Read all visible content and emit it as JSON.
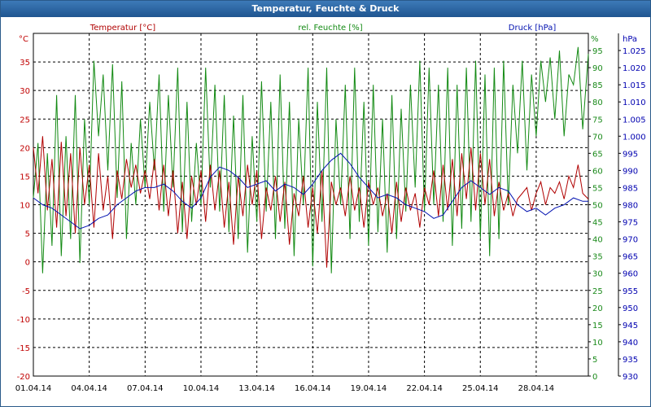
{
  "window": {
    "title": "Temperatur, Feuchte & Druck"
  },
  "chart_data": {
    "type": "line",
    "title": "Temperatur, Feuchte & Druck",
    "grid": true,
    "x_ticks": [
      "01.04.14",
      "04.04.14",
      "07.04.14",
      "10.04.14",
      "13.04.14",
      "16.04.14",
      "19.04.14",
      "22.04.14",
      "25.04.14",
      "28.04.14"
    ],
    "x_range": [
      0,
      29.8
    ],
    "axes": {
      "temperature": {
        "unit": "°C",
        "ylim": [
          -20,
          40
        ],
        "ticks": [
          -20,
          -15,
          -10,
          -5,
          0,
          5,
          10,
          15,
          20,
          25,
          30,
          35
        ],
        "color": "#c00000"
      },
      "humidity": {
        "unit": "%",
        "ylim": [
          0,
          100
        ],
        "ticks": [
          0,
          5,
          10,
          15,
          20,
          25,
          30,
          35,
          40,
          45,
          50,
          55,
          60,
          65,
          70,
          75,
          80,
          85,
          90,
          95
        ],
        "color": "#1a8a1a"
      },
      "pressure": {
        "unit": "hPa",
        "ylim": [
          930,
          1030
        ],
        "ticks": [
          930,
          935,
          940,
          945,
          950,
          955,
          960,
          965,
          970,
          975,
          980,
          985,
          990,
          995,
          1000,
          1005,
          1010,
          1015,
          1020,
          1025
        ],
        "tick_labels": [
          "930",
          "935",
          "940",
          "945",
          "950",
          "955",
          "960",
          "965",
          "970",
          "975",
          "980",
          "985",
          "990",
          "995",
          "1.000",
          "1.005",
          "1.010",
          "1.015",
          "1.020",
          "1.025"
        ],
        "color": "#0000b0"
      }
    },
    "series": [
      {
        "name": "Temperatur [°C]",
        "axis": "temperature",
        "color": "#b00000",
        "x": [
          0,
          0.25,
          0.5,
          0.75,
          1,
          1.25,
          1.5,
          1.75,
          2,
          2.25,
          2.5,
          2.75,
          3,
          3.25,
          3.5,
          3.75,
          4,
          4.25,
          4.5,
          4.75,
          5,
          5.25,
          5.5,
          5.75,
          6,
          6.25,
          6.5,
          6.75,
          7,
          7.25,
          7.5,
          7.75,
          8,
          8.25,
          8.5,
          8.75,
          9,
          9.25,
          9.5,
          9.75,
          10,
          10.25,
          10.5,
          10.75,
          11,
          11.25,
          11.5,
          11.75,
          12,
          12.25,
          12.5,
          12.75,
          13,
          13.25,
          13.5,
          13.75,
          14,
          14.25,
          14.5,
          14.75,
          15,
          15.25,
          15.5,
          15.75,
          16,
          16.25,
          16.5,
          16.75,
          17,
          17.25,
          17.5,
          17.75,
          18,
          18.25,
          18.5,
          18.75,
          19,
          19.25,
          19.5,
          19.75,
          20,
          20.25,
          20.5,
          20.75,
          21,
          21.25,
          21.5,
          21.75,
          22,
          22.25,
          22.5,
          22.75,
          23,
          23.25,
          23.5,
          23.75,
          24,
          24.25,
          24.5,
          24.75,
          25,
          25.25,
          25.5,
          25.75,
          26,
          26.25,
          26.5,
          26.75,
          27,
          27.25,
          27.5,
          27.75,
          28,
          28.25,
          28.5,
          28.75,
          29,
          29.25,
          29.5,
          29.8
        ],
        "values": [
          20,
          12,
          22,
          9,
          18,
          6,
          21,
          8,
          19,
          5,
          20,
          10,
          17,
          6,
          19,
          9,
          15,
          4,
          16,
          11,
          18,
          13,
          17,
          12,
          16,
          11,
          18,
          9,
          17,
          8,
          16,
          5,
          14,
          4,
          15,
          10,
          16,
          7,
          17,
          9,
          16,
          6,
          14,
          3,
          15,
          8,
          17,
          10,
          16,
          4,
          13,
          9,
          15,
          7,
          14,
          3,
          12,
          8,
          15,
          6,
          13,
          5,
          16,
          -1,
          14,
          10,
          13,
          8,
          15,
          9,
          13,
          6,
          14,
          10,
          13,
          8,
          12,
          5,
          14,
          7,
          13,
          9,
          12,
          6,
          13,
          10,
          16,
          8,
          17,
          9,
          18,
          8,
          19,
          11,
          20,
          9,
          19,
          10,
          18,
          8,
          14,
          9,
          12,
          8,
          11,
          12,
          13,
          9,
          12,
          14,
          10,
          13,
          12,
          14,
          11,
          15,
          13,
          17,
          12,
          11
        ],
        "ylim": [
          -20,
          40
        ]
      },
      {
        "name": "rel. Feuchte [%]",
        "axis": "humidity",
        "color": "#138a13",
        "x": [
          0,
          0.25,
          0.5,
          0.75,
          1,
          1.25,
          1.5,
          1.75,
          2,
          2.25,
          2.5,
          2.75,
          3,
          3.25,
          3.5,
          3.75,
          4,
          4.25,
          4.5,
          4.75,
          5,
          5.25,
          5.5,
          5.75,
          6,
          6.25,
          6.5,
          6.75,
          7,
          7.25,
          7.5,
          7.75,
          8,
          8.25,
          8.5,
          8.75,
          9,
          9.25,
          9.5,
          9.75,
          10,
          10.25,
          10.5,
          10.75,
          11,
          11.25,
          11.5,
          11.75,
          12,
          12.25,
          12.5,
          12.75,
          13,
          13.25,
          13.5,
          13.75,
          14,
          14.25,
          14.5,
          14.75,
          15,
          15.25,
          15.5,
          15.75,
          16,
          16.25,
          16.5,
          16.75,
          17,
          17.25,
          17.5,
          17.75,
          18,
          18.25,
          18.5,
          18.75,
          19,
          19.25,
          19.5,
          19.75,
          20,
          20.25,
          20.5,
          20.75,
          21,
          21.25,
          21.5,
          21.75,
          22,
          22.25,
          22.5,
          22.75,
          23,
          23.25,
          23.5,
          23.75,
          24,
          24.25,
          24.5,
          24.75,
          25,
          25.25,
          25.5,
          25.75,
          26,
          26.25,
          26.5,
          26.75,
          27,
          27.25,
          27.5,
          27.75,
          28,
          28.25,
          28.5,
          28.75,
          29,
          29.25,
          29.5,
          29.8
        ],
        "values": [
          52,
          68,
          30,
          65,
          38,
          82,
          35,
          70,
          40,
          82,
          33,
          75,
          50,
          92,
          70,
          88,
          60,
          91,
          52,
          86,
          40,
          68,
          50,
          75,
          55,
          80,
          60,
          88,
          48,
          82,
          55,
          90,
          42,
          80,
          45,
          68,
          50,
          90,
          55,
          85,
          48,
          82,
          42,
          76,
          40,
          82,
          36,
          70,
          45,
          86,
          48,
          80,
          40,
          88,
          43,
          80,
          35,
          75,
          50,
          90,
          32,
          80,
          45,
          90,
          30,
          75,
          50,
          85,
          40,
          90,
          45,
          80,
          38,
          85,
          42,
          75,
          36,
          82,
          40,
          78,
          48,
          85,
          55,
          92,
          48,
          90,
          50,
          85,
          45,
          90,
          38,
          85,
          43,
          90,
          45,
          92,
          40,
          88,
          35,
          90,
          40,
          92,
          50,
          85,
          65,
          92,
          60,
          88,
          70,
          92,
          80,
          93,
          75,
          95,
          70,
          88,
          85,
          96,
          72,
          94
        ],
        "ylim": [
          0,
          100
        ]
      },
      {
        "name": "Druck [hPa]",
        "axis": "pressure",
        "color": "#0010b0",
        "x": [
          0,
          0.5,
          1,
          1.5,
          2,
          2.5,
          3,
          3.5,
          4,
          4.5,
          5,
          5.5,
          6,
          6.5,
          7,
          7.5,
          8,
          8.5,
          9,
          9.5,
          10,
          10.5,
          11,
          11.5,
          12,
          12.5,
          13,
          13.5,
          14,
          14.5,
          15,
          15.5,
          16,
          16.5,
          17,
          17.5,
          18,
          18.5,
          19,
          19.5,
          20,
          20.5,
          21,
          21.5,
          22,
          22.5,
          23,
          23.5,
          24,
          24.5,
          25,
          25.5,
          26,
          26.5,
          27,
          27.5,
          28,
          28.5,
          29,
          29.5,
          29.8
        ],
        "values": [
          982,
          980,
          979,
          977,
          975,
          973,
          974,
          976,
          977,
          980,
          982,
          984,
          985,
          985,
          986,
          984,
          981,
          979,
          982,
          988,
          991,
          990,
          988,
          985,
          986,
          987,
          984,
          986,
          985,
          983,
          986,
          990,
          993,
          995,
          992,
          988,
          985,
          982,
          983,
          982,
          980,
          979,
          978,
          976,
          977,
          981,
          985,
          987,
          985,
          983,
          985,
          984,
          980,
          978,
          979,
          977,
          979,
          980,
          982,
          981,
          981
        ],
        "ylim": [
          930,
          1030
        ]
      }
    ]
  }
}
